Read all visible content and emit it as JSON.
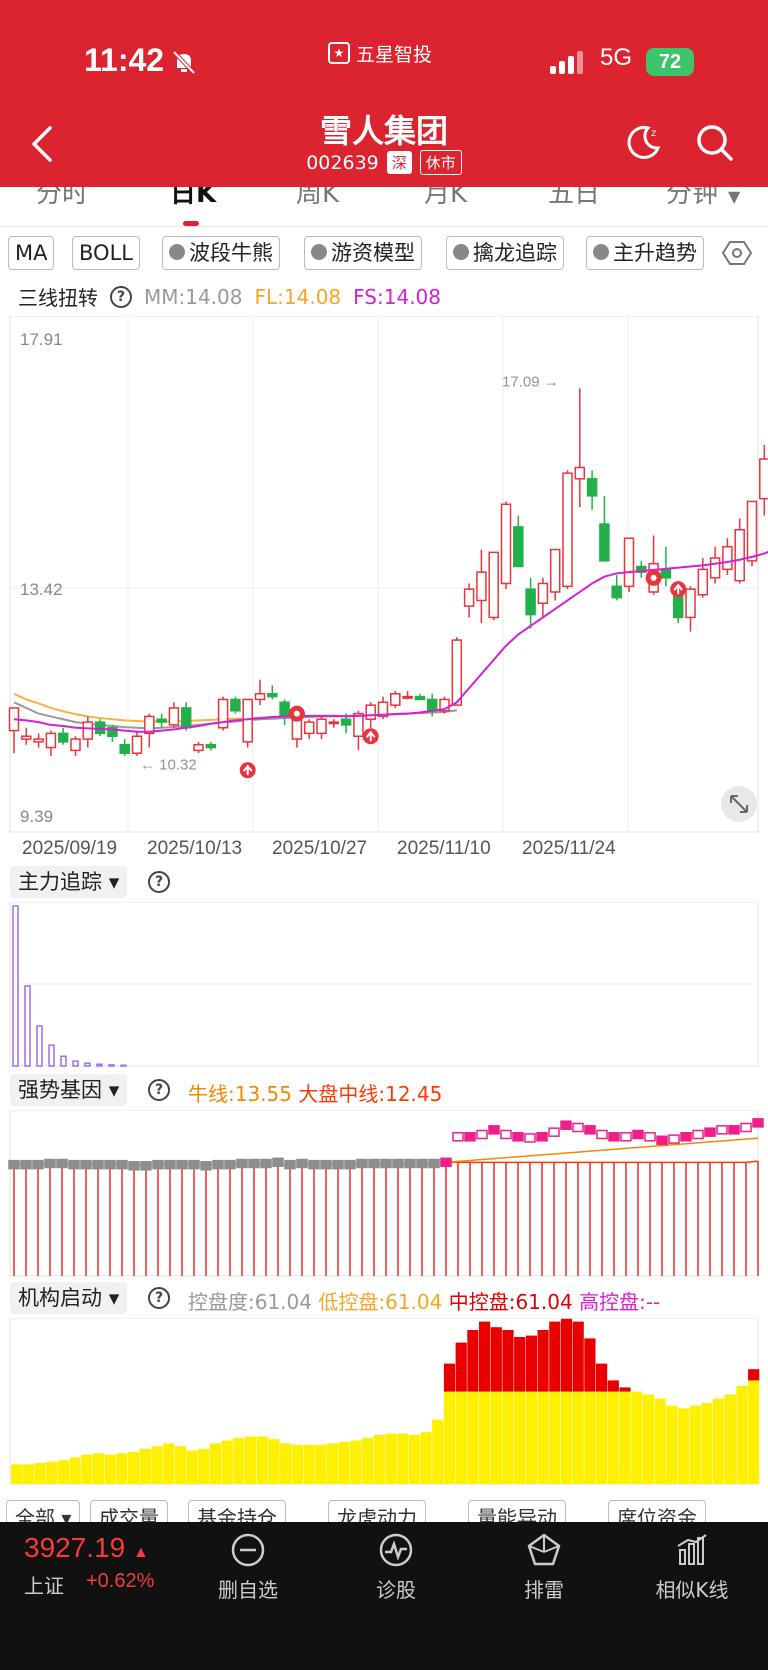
{
  "status": {
    "time": "11:42",
    "network": "5G",
    "battery": "72"
  },
  "app": {
    "name": "五星智投"
  },
  "stock": {
    "name": "雪人集团",
    "code": "002639",
    "market": "深",
    "state": "休市"
  },
  "tabs": [
    {
      "label": "分时",
      "active": false
    },
    {
      "label": "日K",
      "active": true
    },
    {
      "label": "周K",
      "active": false
    },
    {
      "label": "月K",
      "active": false
    },
    {
      "label": "五日",
      "active": false
    },
    {
      "label": "分钟",
      "active": false
    }
  ],
  "indicator_chips": [
    {
      "label": "MA",
      "icon": ""
    },
    {
      "label": "BOLL",
      "icon": ""
    },
    {
      "label": "波段牛熊",
      "icon": "diamond-icon"
    },
    {
      "label": "游资模型",
      "icon": "diamond-icon"
    },
    {
      "label": "擒龙追踪",
      "icon": "diamond-icon"
    },
    {
      "label": "主升趋势",
      "icon": "diamond-icon"
    }
  ],
  "main_legend": {
    "name": "三线扭转",
    "items": [
      {
        "text": "MM:14.08",
        "color": "#999999"
      },
      {
        "text": "FL:14.08",
        "color": "#f5a623"
      },
      {
        "text": "FS:14.08",
        "color": "#d61fd6"
      }
    ]
  },
  "sub1": {
    "title": "主力追踪"
  },
  "sub2": {
    "title": "强势基因",
    "items": [
      {
        "text": "牛线:13.55",
        "color": "#f08a00"
      },
      {
        "text": "大盘中线:12.45",
        "color": "#ff3a00"
      }
    ]
  },
  "sub3": {
    "title": "机构启动",
    "items": [
      {
        "text": "控盘度:61.04",
        "color": "#999999"
      },
      {
        "text": "低控盘:61.04",
        "color": "#f5a623"
      },
      {
        "text": "中控盘:61.04",
        "color": "#e00000"
      },
      {
        "text": "高控盘:--",
        "color": "#d61fd6"
      }
    ]
  },
  "bottom_chips": [
    "全部",
    "成交量",
    "基金持仓",
    "龙虎动力",
    "量能异动",
    "席位资金"
  ],
  "footer": {
    "index_value": "3927.19",
    "index_name": "上证",
    "index_change": "+0.62%",
    "buttons": [
      {
        "label": "删自选",
        "icon": "minus-circle-icon"
      },
      {
        "label": "诊股",
        "icon": "diagnose-icon"
      },
      {
        "label": "排雷",
        "icon": "pentagon-icon"
      },
      {
        "label": "相似K线",
        "icon": "bar-chart-icon"
      }
    ]
  },
  "chart_data": {
    "type": "candlestick",
    "y_ticks": [
      "17.91",
      "13.42",
      "9.39"
    ],
    "ylim": [
      9.39,
      17.91
    ],
    "x_labels": [
      "2025/09/19",
      "2025/10/13",
      "2025/10/27",
      "2025/11/10",
      "2025/11/24"
    ],
    "annotations": [
      {
        "text": "17.09 →",
        "value": 17.09
      },
      {
        "text": "← 10.32",
        "value": 10.32
      }
    ],
    "candles": [
      {
        "o": 10.9,
        "h": 11.3,
        "l": 10.5,
        "c": 11.3
      },
      {
        "o": 10.75,
        "h": 10.95,
        "l": 10.65,
        "c": 10.8
      },
      {
        "o": 10.7,
        "h": 10.85,
        "l": 10.6,
        "c": 10.75
      },
      {
        "o": 10.6,
        "h": 10.9,
        "l": 10.45,
        "c": 10.85
      },
      {
        "o": 10.85,
        "h": 10.95,
        "l": 10.65,
        "c": 10.7
      },
      {
        "o": 10.55,
        "h": 10.8,
        "l": 10.45,
        "c": 10.75
      },
      {
        "o": 10.75,
        "h": 11.15,
        "l": 10.6,
        "c": 11.05
      },
      {
        "o": 11.05,
        "h": 11.1,
        "l": 10.8,
        "c": 10.85
      },
      {
        "o": 10.95,
        "h": 11.0,
        "l": 10.7,
        "c": 10.8
      },
      {
        "o": 10.65,
        "h": 10.75,
        "l": 10.45,
        "c": 10.5
      },
      {
        "o": 10.5,
        "h": 10.9,
        "l": 10.45,
        "c": 10.8
      },
      {
        "o": 10.85,
        "h": 11.2,
        "l": 10.6,
        "c": 11.15
      },
      {
        "o": 11.1,
        "h": 11.2,
        "l": 10.95,
        "c": 11.05
      },
      {
        "o": 11.0,
        "h": 11.4,
        "l": 10.95,
        "c": 11.3
      },
      {
        "o": 11.3,
        "h": 11.4,
        "l": 10.9,
        "c": 10.95
      },
      {
        "o": 10.55,
        "h": 10.7,
        "l": 10.5,
        "c": 10.65
      },
      {
        "o": 10.65,
        "h": 10.7,
        "l": 10.55,
        "c": 10.6
      },
      {
        "o": 10.95,
        "h": 11.5,
        "l": 10.9,
        "c": 11.45
      },
      {
        "o": 11.45,
        "h": 11.5,
        "l": 11.2,
        "c": 11.25
      },
      {
        "o": 10.7,
        "h": 11.45,
        "l": 10.6,
        "c": 11.45
      },
      {
        "o": 11.45,
        "h": 11.8,
        "l": 11.35,
        "c": 11.55
      },
      {
        "o": 11.55,
        "h": 11.7,
        "l": 11.45,
        "c": 11.5
      },
      {
        "o": 11.4,
        "h": 11.45,
        "l": 11.0,
        "c": 11.15
      },
      {
        "o": 10.75,
        "h": 11.2,
        "l": 10.6,
        "c": 11.2
      },
      {
        "o": 10.85,
        "h": 11.1,
        "l": 10.75,
        "c": 11.05
      },
      {
        "o": 10.85,
        "h": 11.15,
        "l": 10.75,
        "c": 11.1
      },
      {
        "o": 11.05,
        "h": 11.1,
        "l": 10.95,
        "c": 11.05
      },
      {
        "o": 11.1,
        "h": 11.2,
        "l": 10.85,
        "c": 11.0
      },
      {
        "o": 10.8,
        "h": 11.25,
        "l": 10.55,
        "c": 11.2
      },
      {
        "o": 11.1,
        "h": 11.4,
        "l": 10.95,
        "c": 11.35
      },
      {
        "o": 11.15,
        "h": 11.5,
        "l": 11.1,
        "c": 11.4
      },
      {
        "o": 11.35,
        "h": 11.6,
        "l": 11.3,
        "c": 11.55
      },
      {
        "o": 11.5,
        "h": 11.6,
        "l": 11.45,
        "c": 11.5
      },
      {
        "o": 11.5,
        "h": 11.55,
        "l": 11.45,
        "c": 11.45
      },
      {
        "o": 11.45,
        "h": 11.55,
        "l": 11.15,
        "c": 11.25
      },
      {
        "o": 11.25,
        "h": 11.5,
        "l": 11.2,
        "c": 11.45
      },
      {
        "o": 11.35,
        "h": 12.55,
        "l": 11.35,
        "c": 12.5
      },
      {
        "o": 13.1,
        "h": 13.5,
        "l": 12.9,
        "c": 13.4
      },
      {
        "o": 13.2,
        "h": 14.1,
        "l": 12.8,
        "c": 13.7
      },
      {
        "o": 12.9,
        "h": 14.05,
        "l": 12.85,
        "c": 14.05
      },
      {
        "o": 13.5,
        "h": 14.95,
        "l": 13.4,
        "c": 14.9
      },
      {
        "o": 14.5,
        "h": 14.7,
        "l": 13.8,
        "c": 13.8
      },
      {
        "o": 13.4,
        "h": 13.6,
        "l": 12.7,
        "c": 12.95
      },
      {
        "o": 13.15,
        "h": 13.6,
        "l": 12.9,
        "c": 13.5
      },
      {
        "o": 13.35,
        "h": 14.1,
        "l": 13.2,
        "c": 14.1
      },
      {
        "o": 13.45,
        "h": 15.5,
        "l": 13.4,
        "c": 15.45
      },
      {
        "o": 15.35,
        "h": 16.95,
        "l": 14.85,
        "c": 15.55
      },
      {
        "o": 15.35,
        "h": 15.5,
        "l": 14.8,
        "c": 15.05
      },
      {
        "o": 14.55,
        "h": 15.05,
        "l": 13.9,
        "c": 13.9
      },
      {
        "o": 13.45,
        "h": 13.65,
        "l": 13.2,
        "c": 13.25
      },
      {
        "o": 13.45,
        "h": 14.3,
        "l": 13.35,
        "c": 14.3
      },
      {
        "o": 13.8,
        "h": 13.9,
        "l": 13.6,
        "c": 13.7
      },
      {
        "o": 13.35,
        "h": 14.35,
        "l": 13.3,
        "c": 13.85
      },
      {
        "o": 13.75,
        "h": 14.15,
        "l": 13.45,
        "c": 13.6
      },
      {
        "o": 13.35,
        "h": 13.5,
        "l": 12.8,
        "c": 12.9
      },
      {
        "o": 12.9,
        "h": 13.45,
        "l": 12.65,
        "c": 13.4
      },
      {
        "o": 13.3,
        "h": 13.95,
        "l": 13.25,
        "c": 13.75
      },
      {
        "o": 13.6,
        "h": 14.15,
        "l": 13.5,
        "c": 13.95
      },
      {
        "o": 13.75,
        "h": 14.3,
        "l": 13.65,
        "c": 14.15
      },
      {
        "o": 13.55,
        "h": 14.65,
        "l": 13.5,
        "c": 14.45
      },
      {
        "o": 13.9,
        "h": 14.95,
        "l": 13.8,
        "c": 14.95
      },
      {
        "o": 15.0,
        "h": 15.95,
        "l": 14.7,
        "c": 15.7
      },
      {
        "o": 15.55,
        "h": 16.45,
        "l": 15.4,
        "c": 15.95
      }
    ],
    "lines": {
      "gray": [
        11.4,
        11.3,
        11.2,
        11.15,
        11.1,
        11.05,
        11.02,
        11.0,
        10.98,
        10.96,
        10.95,
        10.94,
        10.95,
        10.96,
        10.98,
        11.0,
        11.02,
        11.04,
        11.06,
        11.08,
        11.1,
        11.11,
        11.12,
        11.13,
        11.14,
        11.15,
        11.15,
        11.16,
        11.16,
        11.17,
        11.18,
        11.19,
        11.2,
        11.21,
        11.22,
        11.23,
        11.26
      ],
      "orange": [
        11.55,
        11.45,
        11.38,
        11.3,
        11.24,
        11.19,
        11.15,
        11.12,
        11.1,
        11.08,
        11.07,
        11.06,
        11.06,
        11.06,
        11.07,
        11.08,
        11.09,
        11.1,
        11.11,
        11.12,
        11.13,
        11.13,
        11.14,
        11.14,
        11.15,
        11.15,
        11.15,
        11.16,
        11.16,
        11.17,
        11.18,
        11.19,
        11.2,
        11.21,
        11.22,
        11.23,
        11.26
      ],
      "magenta": [
        11.1,
        11.08,
        11.05,
        11.0,
        10.98,
        10.95,
        10.94,
        10.93,
        10.92,
        10.9,
        10.88,
        10.88,
        10.9,
        10.92,
        10.95,
        10.98,
        11.02,
        11.05,
        11.08,
        11.1,
        11.12,
        11.14,
        11.15,
        11.15,
        11.16,
        11.16,
        11.16,
        11.15,
        11.16,
        11.17,
        11.18,
        11.19,
        11.2,
        11.22,
        11.25,
        11.28,
        11.4,
        11.65,
        11.9,
        12.15,
        12.4,
        12.6,
        12.75,
        12.9,
        13.05,
        13.2,
        13.35,
        13.5,
        13.62,
        13.68,
        13.7,
        13.72,
        13.74,
        13.76,
        13.78,
        13.8,
        13.82,
        13.85,
        13.88,
        13.92,
        13.97,
        14.03,
        14.12
      ]
    },
    "markers": [
      {
        "index": 19,
        "kind": "up-arrow",
        "value": 10.2
      },
      {
        "index": 23,
        "kind": "sell",
        "value": 11.2
      },
      {
        "index": 29,
        "kind": "up-arrow",
        "value": 10.8
      },
      {
        "index": 52,
        "kind": "sell",
        "value": 13.6
      },
      {
        "index": 54,
        "kind": "up-arrow",
        "value": 13.4
      }
    ],
    "zhuli_bars": [
      4.6,
      2.3,
      1.15,
      0.6,
      0.28,
      0.14,
      0.08,
      0.05,
      0.03,
      0.02
    ],
    "qiangshi": {
      "bars": [
        0.96,
        0.96,
        0.96,
        0.96,
        0.96,
        0.96,
        0.96,
        0.96,
        0.96,
        0.96,
        0.96,
        0.96,
        0.96,
        0.96,
        0.96,
        0.96,
        0.96,
        0.96,
        0.96,
        0.96,
        0.96,
        0.96,
        0.96,
        0.96,
        0.96,
        0.96,
        0.96,
        0.96,
        0.96,
        0.96,
        0.96,
        0.96,
        0.96,
        0.96,
        0.96,
        0.96,
        0.98,
        0.98,
        0.98,
        0.98,
        0.98,
        0.98,
        0.98,
        0.98,
        0.98,
        0.98,
        0.98,
        0.98,
        0.98,
        0.98,
        0.98,
        0.98,
        0.98,
        0.98,
        0.98,
        0.98,
        0.98,
        0.98,
        0.98,
        0.98,
        0.98,
        0.98,
        0.99
      ],
      "boxes": [
        0.96,
        0.96,
        0.96,
        0.97,
        0.97,
        0.96,
        0.96,
        0.96,
        0.96,
        0.96,
        0.95,
        0.95,
        0.96,
        0.96,
        0.96,
        0.96,
        0.95,
        0.96,
        0.96,
        0.97,
        0.97,
        0.97,
        0.98,
        0.96,
        0.97,
        0.96,
        0.96,
        0.96,
        0.96,
        0.97,
        0.97,
        0.97,
        0.97,
        0.97,
        0.97,
        0.97,
        0.98,
        1.2,
        1.2,
        1.22,
        1.26,
        1.22,
        1.2,
        1.19,
        1.2,
        1.24,
        1.3,
        1.28,
        1.26,
        1.22,
        1.2,
        1.2,
        1.22,
        1.2,
        1.17,
        1.18,
        1.2,
        1.22,
        1.24,
        1.26,
        1.26,
        1.28,
        1.32
      ]
    },
    "jigou": {
      "yellow": [
        14,
        14,
        15,
        16,
        17,
        19,
        21,
        22,
        21,
        22,
        23,
        25,
        27,
        29,
        27,
        24,
        25,
        29,
        31,
        33,
        34,
        34,
        32,
        29,
        28,
        28,
        28,
        29,
        30,
        31,
        33,
        35,
        36,
        36,
        35,
        37,
        46,
        66,
        66,
        66,
        66,
        66,
        66,
        66,
        66,
        66,
        66,
        66,
        66,
        66,
        66,
        66,
        66,
        66,
        64,
        61,
        56,
        54,
        56,
        58,
        61,
        64,
        70,
        74
      ],
      "red": [
        0,
        0,
        0,
        0,
        0,
        0,
        0,
        0,
        0,
        0,
        0,
        0,
        0,
        0,
        0,
        0,
        0,
        0,
        0,
        0,
        0,
        0,
        0,
        0,
        0,
        0,
        0,
        0,
        0,
        0,
        0,
        0,
        0,
        0,
        0,
        0,
        0,
        20,
        35,
        44,
        50,
        46,
        44,
        39,
        40,
        44,
        50,
        52,
        50,
        38,
        20,
        8,
        3,
        0,
        0,
        0,
        0,
        0,
        0,
        0,
        0,
        0,
        0,
        8
      ]
    }
  }
}
